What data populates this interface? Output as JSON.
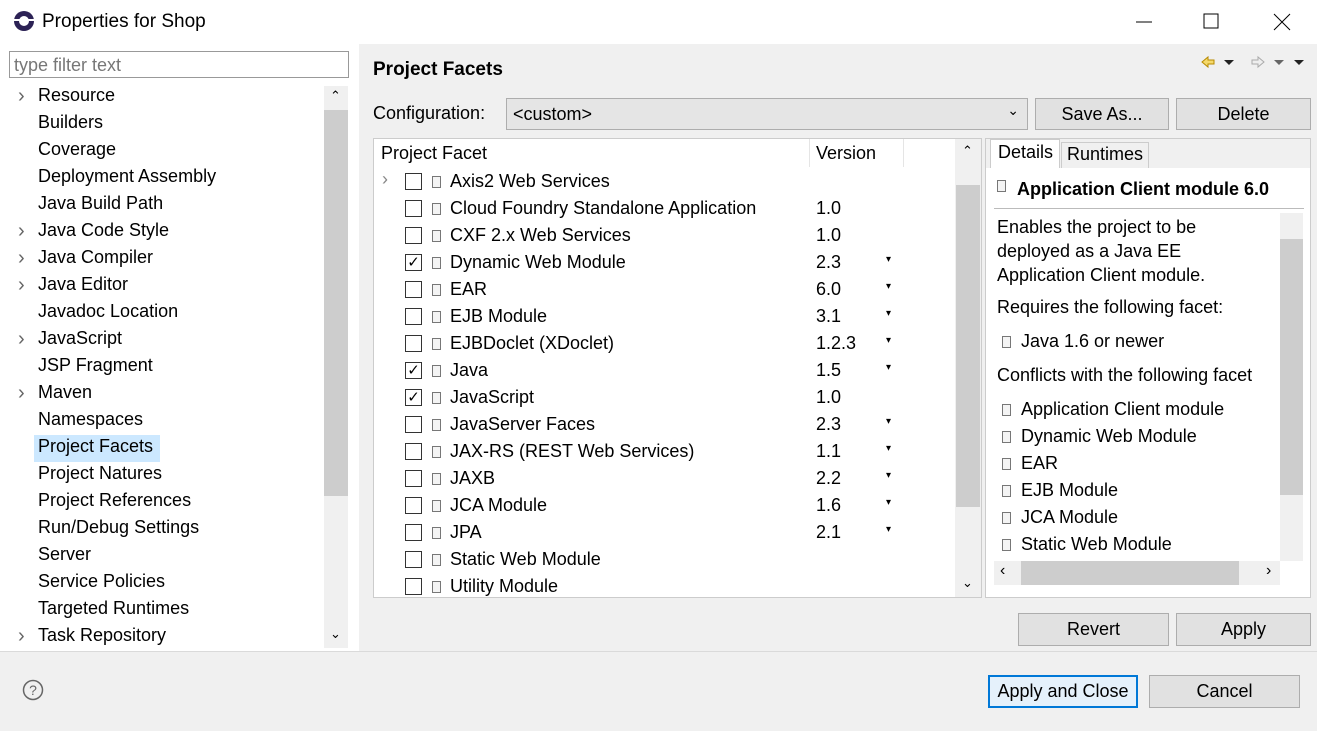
{
  "window": {
    "title": "Properties for Shop"
  },
  "sidebar": {
    "filter_placeholder": "type filter text",
    "items": [
      {
        "label": "Resource",
        "expandable": true
      },
      {
        "label": "Builders"
      },
      {
        "label": "Coverage"
      },
      {
        "label": "Deployment Assembly"
      },
      {
        "label": "Java Build Path"
      },
      {
        "label": "Java Code Style",
        "expandable": true
      },
      {
        "label": "Java Compiler",
        "expandable": true
      },
      {
        "label": "Java Editor",
        "expandable": true
      },
      {
        "label": "Javadoc Location"
      },
      {
        "label": "JavaScript",
        "expandable": true
      },
      {
        "label": "JSP Fragment"
      },
      {
        "label": "Maven",
        "expandable": true
      },
      {
        "label": "Namespaces"
      },
      {
        "label": "Project Facets",
        "selected": true
      },
      {
        "label": "Project Natures"
      },
      {
        "label": "Project References"
      },
      {
        "label": "Run/Debug Settings"
      },
      {
        "label": "Server"
      },
      {
        "label": "Service Policies"
      },
      {
        "label": "Targeted Runtimes"
      },
      {
        "label": "Task Repository",
        "expandable": true
      }
    ]
  },
  "page": {
    "title": "Project Facets",
    "configuration_label": "Configuration:",
    "configuration_value": "<custom>",
    "save_as_button": "Save As...",
    "delete_button": "Delete",
    "table": {
      "columns": [
        "Project Facet",
        "Version"
      ],
      "rows": [
        {
          "name": "Axis2 Web Services",
          "checked": false,
          "expandable": true
        },
        {
          "name": "Cloud Foundry Standalone Application",
          "version": "1.0",
          "checked": false
        },
        {
          "name": "CXF 2.x Web Services",
          "version": "1.0",
          "checked": false
        },
        {
          "name": "Dynamic Web Module",
          "version": "2.3",
          "checked": true,
          "dropdown": true
        },
        {
          "name": "EAR",
          "version": "6.0",
          "checked": false,
          "dropdown": true
        },
        {
          "name": "EJB Module",
          "version": "3.1",
          "checked": false,
          "dropdown": true
        },
        {
          "name": "EJBDoclet (XDoclet)",
          "version": "1.2.3",
          "checked": false,
          "dropdown": true
        },
        {
          "name": "Java",
          "version": "1.5",
          "checked": true,
          "dropdown": true
        },
        {
          "name": "JavaScript",
          "version": "1.0",
          "checked": true
        },
        {
          "name": "JavaServer Faces",
          "version": "2.3",
          "checked": false,
          "dropdown": true
        },
        {
          "name": "JAX-RS (REST Web Services)",
          "version": "1.1",
          "checked": false,
          "dropdown": true
        },
        {
          "name": "JAXB",
          "version": "2.2",
          "checked": false,
          "dropdown": true
        },
        {
          "name": "JCA Module",
          "version": "1.6",
          "checked": false,
          "dropdown": true
        },
        {
          "name": "JPA",
          "version": "2.1",
          "checked": false,
          "dropdown": true
        },
        {
          "name": "Static Web Module",
          "checked": false
        },
        {
          "name": "Utility Module",
          "checked": false
        }
      ]
    },
    "details": {
      "tabs": [
        "Details",
        "Runtimes"
      ],
      "title": "Application Client module 6.0",
      "description": "Enables the project to be deployed as a Java EE Application Client module.",
      "requires_heading": "Requires the following facet:",
      "requires": [
        "Java 1.6 or newer"
      ],
      "conflicts_heading": "Conflicts with the following facet",
      "conflicts": [
        "Application Client module",
        "Dynamic Web Module",
        "EAR",
        "EJB Module",
        "JCA Module",
        "Static Web Module"
      ]
    },
    "revert_button": "Revert",
    "apply_button": "Apply"
  },
  "footer": {
    "apply_close_button": "Apply and Close",
    "cancel_button": "Cancel"
  }
}
